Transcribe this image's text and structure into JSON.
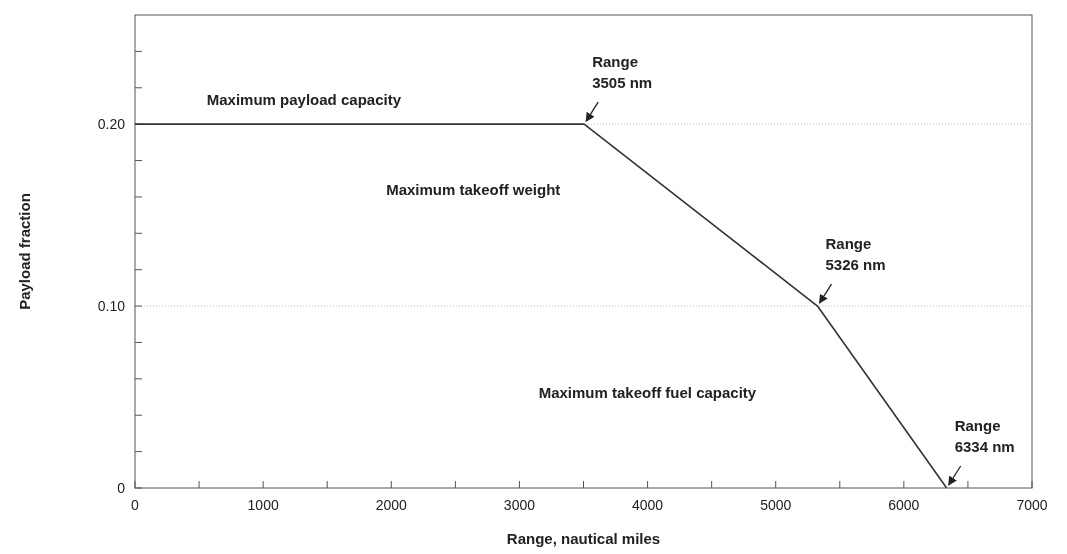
{
  "chart_data": {
    "type": "line",
    "xlabel": "Range, nautical miles",
    "ylabel": "Payload fraction",
    "x": [
      0,
      3505,
      5326,
      6334
    ],
    "series": [
      {
        "color": "#333333",
        "values": [
          0.2,
          0.2,
          0.1,
          0
        ]
      }
    ],
    "xlim": [
      0,
      7000
    ],
    "xticks": [
      0,
      {
        "value": 500,
        "label": null
      },
      1000,
      {
        "value": 1500,
        "label": null
      },
      2000,
      {
        "value": 2500,
        "label": null
      },
      3000,
      {
        "value": 3500,
        "label": null
      },
      4000,
      {
        "value": 4500,
        "label": null
      },
      5000,
      {
        "value": 5500,
        "label": null
      },
      6000,
      {
        "value": 6500,
        "label": null
      },
      7000
    ],
    "ylim": [
      0,
      0.26
    ],
    "yticks": [
      0,
      {
        "value": 0.02,
        "label": null
      },
      {
        "value": 0.04,
        "label": null
      },
      {
        "value": 0.06,
        "label": null
      },
      {
        "value": 0.08,
        "label": null
      },
      {
        "value": 0.1,
        "label": "0.10"
      },
      {
        "value": 0.12,
        "label": null
      },
      {
        "value": 0.14,
        "label": null
      },
      {
        "value": 0.16,
        "label": null
      },
      {
        "value": 0.18,
        "label": null
      },
      {
        "value": 0.2,
        "label": "0.20"
      },
      {
        "value": 0.22,
        "label": null
      },
      {
        "value": 0.24,
        "label": null
      }
    ],
    "grid": "y",
    "marker": "none",
    "line_style": "solid",
    "annotations": [
      "Maximum payload capacity",
      "Maximum takeoff weight",
      "Maximum takeoff fuel capacity",
      {
        "text": "Range\n3505 nm",
        "x": 3505,
        "y": 0.2
      },
      {
        "text": "Range\n5326 nm",
        "x": 5326,
        "y": 0.1
      },
      {
        "text": "Range\n6334 nm",
        "x": 6334,
        "y": 0
      }
    ]
  }
}
